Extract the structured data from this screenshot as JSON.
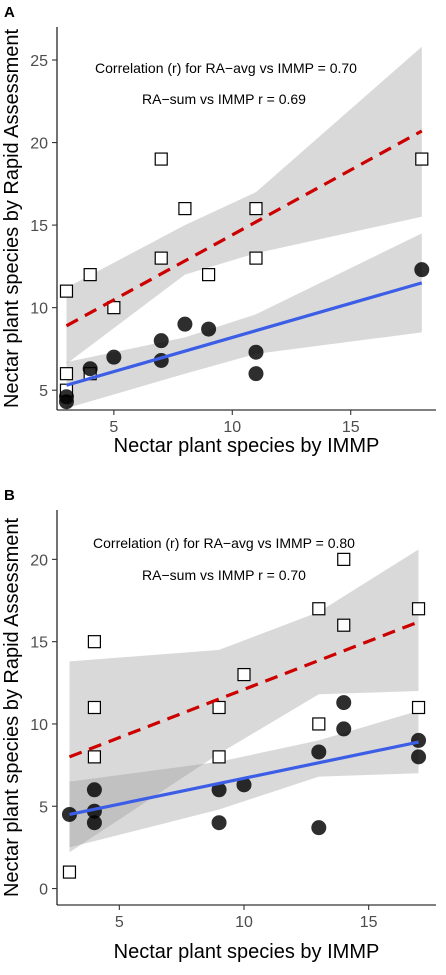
{
  "chart_data": [
    {
      "panel": "A",
      "type": "scatter",
      "xlabel": "Nectar plant species by IMMP",
      "ylabel": "Nectar plant species by Rapid Assessment",
      "xlim": [
        2.6,
        18.6
      ],
      "ylim": [
        3.8,
        27.0
      ],
      "xticks": [
        5,
        10,
        15
      ],
      "yticks": [
        5,
        10,
        15,
        20,
        25
      ],
      "annotations": [
        "Correlation (r) for RA−avg vs IMMP = 0.70",
        "RA−sum vs IMMP r = 0.69"
      ],
      "series": [
        {
          "marker": "open-square",
          "points": [
            [
              3,
              11
            ],
            [
              3,
              6
            ],
            [
              3,
              5
            ],
            [
              4,
              12
            ],
            [
              4,
              6
            ],
            [
              5,
              10
            ],
            [
              7,
              19
            ],
            [
              7,
              13
            ],
            [
              8,
              16
            ],
            [
              9,
              12
            ],
            [
              11,
              16
            ],
            [
              11,
              13
            ],
            [
              18,
              19
            ]
          ],
          "fit": {
            "style": "dashed",
            "color": "#cc0000",
            "x": [
              3,
              18
            ],
            "y": [
              8.9,
              20.7
            ],
            "band_x": [
              3,
              8,
              11,
              18
            ],
            "band_lo": [
              6.6,
              12.0,
              13.3,
              15.5
            ],
            "band_hi": [
              11.2,
              15.0,
              17.0,
              25.8
            ]
          }
        },
        {
          "marker": "filled-circle",
          "points": [
            [
              3,
              4.3
            ],
            [
              3,
              4.6
            ],
            [
              4,
              6.3
            ],
            [
              5,
              7
            ],
            [
              7,
              6.8
            ],
            [
              7,
              8
            ],
            [
              8,
              9
            ],
            [
              9,
              8.7
            ],
            [
              11,
              7.3
            ],
            [
              11,
              6
            ],
            [
              18,
              12.3
            ]
          ],
          "fit": {
            "style": "solid",
            "color": "#3c5ee6",
            "x": [
              3,
              18
            ],
            "y": [
              5.3,
              11.5
            ],
            "band_lo": [
              3.9,
              6.0,
              7.2,
              8.5
            ],
            "band_hi": [
              6.7,
              8.2,
              9.6,
              14.5
            ]
          }
        }
      ]
    },
    {
      "panel": "B",
      "type": "scatter",
      "xlabel": "Nectar plant species by IMMP",
      "ylabel": "Nectar plant species by Rapid Assessment",
      "xlim": [
        2.5,
        17.7
      ],
      "ylim": [
        -1.0,
        23.0
      ],
      "xticks": [
        5,
        10,
        15
      ],
      "yticks": [
        0,
        5,
        10,
        15,
        20
      ],
      "annotations": [
        "Correlation (r) for RA−avg vs IMMP = 0.80",
        "RA−sum vs IMMP r = 0.70"
      ],
      "series": [
        {
          "marker": "open-square",
          "points": [
            [
              3,
              1
            ],
            [
              4,
              15
            ],
            [
              4,
              11
            ],
            [
              4,
              8
            ],
            [
              9,
              11
            ],
            [
              9,
              8
            ],
            [
              10,
              13
            ],
            [
              13,
              17
            ],
            [
              13,
              10
            ],
            [
              14,
              20
            ],
            [
              14,
              16
            ],
            [
              17,
              17
            ],
            [
              17,
              11
            ]
          ],
          "fit": {
            "style": "dashed",
            "color": "#cc0000",
            "x": [
              3,
              17
            ],
            "y": [
              8.0,
              16.2
            ],
            "band_x": [
              3,
              9,
              13,
              17
            ],
            "band_lo": [
              2.2,
              8.2,
              11.8,
              12.0
            ],
            "band_hi": [
              13.8,
              14.5,
              16.8,
              20.6
            ]
          }
        },
        {
          "marker": "filled-circle",
          "points": [
            [
              3,
              4.5
            ],
            [
              4,
              6
            ],
            [
              4,
              4.7
            ],
            [
              4,
              4
            ],
            [
              9,
              6
            ],
            [
              9,
              4
            ],
            [
              10,
              6.3
            ],
            [
              13,
              8.3
            ],
            [
              13,
              3.7
            ],
            [
              14,
              11.3
            ],
            [
              14,
              9.7
            ],
            [
              17,
              9
            ],
            [
              17,
              8
            ]
          ],
          "fit": {
            "style": "solid",
            "color": "#3c5ee6",
            "x": [
              3,
              17
            ],
            "y": [
              4.5,
              8.9
            ],
            "band_lo": [
              2.5,
              4.8,
              6.8,
              7.0
            ],
            "band_hi": [
              6.5,
              7.7,
              9.0,
              10.8
            ]
          }
        }
      ]
    }
  ],
  "panels": [
    {
      "label": "A"
    },
    {
      "label": "B"
    }
  ]
}
